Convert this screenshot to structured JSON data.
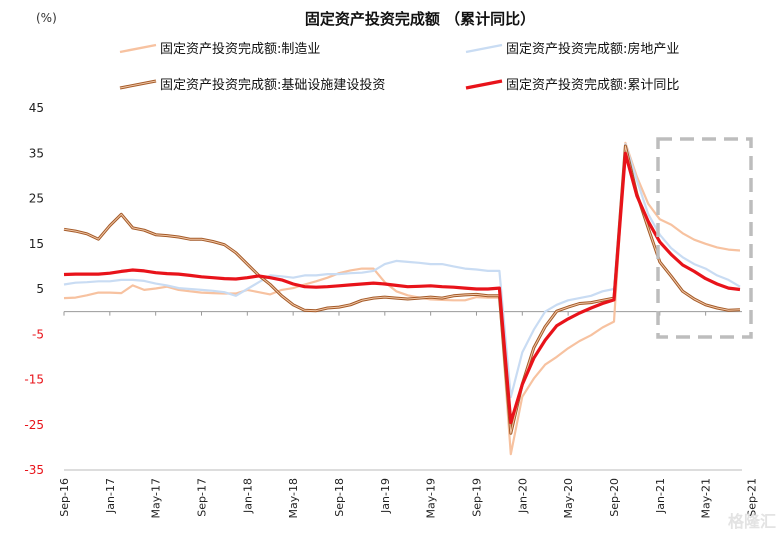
{
  "chart_data": {
    "type": "line",
    "title": "固定资产投资完成额 （累计同比）",
    "ylabel": "(%)",
    "ylim": [
      -35,
      45
    ],
    "yticks": [
      "45",
      "35",
      "25",
      "15",
      "5",
      "-5",
      "-15",
      "-25",
      "-35"
    ],
    "ytick_values": [
      45,
      35,
      25,
      15,
      5,
      -5,
      -15,
      -25,
      -35
    ],
    "x_tick_labels": [
      "Sep-16",
      "Jan-17",
      "May-17",
      "Sep-17",
      "Jan-18",
      "May-18",
      "Sep-18",
      "Jan-19",
      "May-19",
      "Sep-19",
      "Jan-20",
      "May-20",
      "Sep-20",
      "Jan-21",
      "May-21",
      "Sep-21"
    ],
    "grid": false,
    "legend_position": "top",
    "series": [
      {
        "name": "固定资产投资完成额:制造业",
        "color": "#f7c2a0",
        "values": [
          3.0,
          3.1,
          3.6,
          4.2,
          4.2,
          4.1,
          5.8,
          4.8,
          5.1,
          5.5,
          4.8,
          4.5,
          4.2,
          4.1,
          4.0,
          4.0,
          4.8,
          4.3,
          3.8,
          4.8,
          5.2,
          6.0,
          6.7,
          7.5,
          8.5,
          9.1,
          9.5,
          9.5,
          6.5,
          4.5,
          3.6,
          3.1,
          2.7,
          2.6,
          2.5,
          2.5,
          3.2,
          3.1,
          3.1,
          -31.5,
          -18.8,
          -14.8,
          -11.7,
          -10.0,
          -8.1,
          -6.5,
          -5.2,
          -3.5,
          -2.2,
          37.3,
          29.8,
          23.8,
          20.4,
          19.2,
          17.3,
          15.9,
          15.0,
          14.2,
          13.7,
          13.5
        ],
        "dash": false
      },
      {
        "name": "固定资产投资完成额:房地产业",
        "color": "#c9dcf3",
        "values": [
          6.0,
          6.4,
          6.5,
          6.7,
          6.7,
          7.0,
          7.0,
          6.8,
          6.2,
          5.8,
          5.2,
          5.0,
          4.8,
          4.6,
          4.3,
          3.5,
          5.0,
          6.5,
          8.0,
          7.8,
          7.5,
          8.0,
          8.0,
          8.3,
          8.3,
          8.5,
          8.6,
          9.0,
          10.5,
          11.2,
          11.0,
          10.8,
          10.5,
          10.5,
          10.0,
          9.5,
          9.3,
          9.0,
          9.0,
          -18.9,
          -9.0,
          -4.0,
          0.0,
          1.5,
          2.5,
          3.0,
          3.5,
          4.5,
          5.0,
          37.0,
          29.0,
          21.5,
          17.0,
          14.0,
          12.0,
          10.5,
          9.5,
          8.0,
          7.0,
          5.5
        ],
        "dash": false
      },
      {
        "name": "固定资产投资完成额:基础设施建设投资",
        "color": "#d0763f",
        "values": [
          18.2,
          17.8,
          17.2,
          16.0,
          19.0,
          21.5,
          18.5,
          18.0,
          17.0,
          16.8,
          16.5,
          16.0,
          16.0,
          15.5,
          14.8,
          13.0,
          10.5,
          8.0,
          6.0,
          3.5,
          1.5,
          0.3,
          0.2,
          0.8,
          1.0,
          1.5,
          2.5,
          3.0,
          3.2,
          3.0,
          2.8,
          3.0,
          3.2,
          3.0,
          3.5,
          3.7,
          3.8,
          3.5,
          3.5,
          -26.9,
          -16.0,
          -8.0,
          -3.3,
          0.1,
          1.0,
          1.8,
          2.0,
          2.5,
          3.0,
          36.6,
          26.0,
          18.4,
          11.0,
          7.8,
          4.5,
          2.8,
          1.5,
          0.8,
          0.3,
          0.4
        ],
        "dash": false
      },
      {
        "name": "固定资产投资完成额:累计同比",
        "color": "#e8131a",
        "values": [
          8.2,
          8.3,
          8.3,
          8.3,
          8.5,
          8.9,
          9.2,
          9.0,
          8.6,
          8.4,
          8.3,
          8.0,
          7.7,
          7.5,
          7.3,
          7.2,
          7.5,
          7.9,
          7.5,
          7.0,
          6.1,
          5.5,
          5.4,
          5.5,
          5.7,
          5.9,
          6.1,
          6.3,
          6.1,
          5.8,
          5.5,
          5.6,
          5.7,
          5.5,
          5.4,
          5.2,
          5.0,
          5.0,
          5.2,
          -24.5,
          -16.1,
          -10.3,
          -6.3,
          -3.1,
          -1.6,
          -0.3,
          0.8,
          1.8,
          2.6,
          35.0,
          25.6,
          19.9,
          15.4,
          12.6,
          10.3,
          8.9,
          7.3,
          6.1,
          5.2,
          4.9
        ],
        "dash": false
      }
    ],
    "annotation": "dashed-gray-box-highlight"
  },
  "watermark": "格隆汇"
}
